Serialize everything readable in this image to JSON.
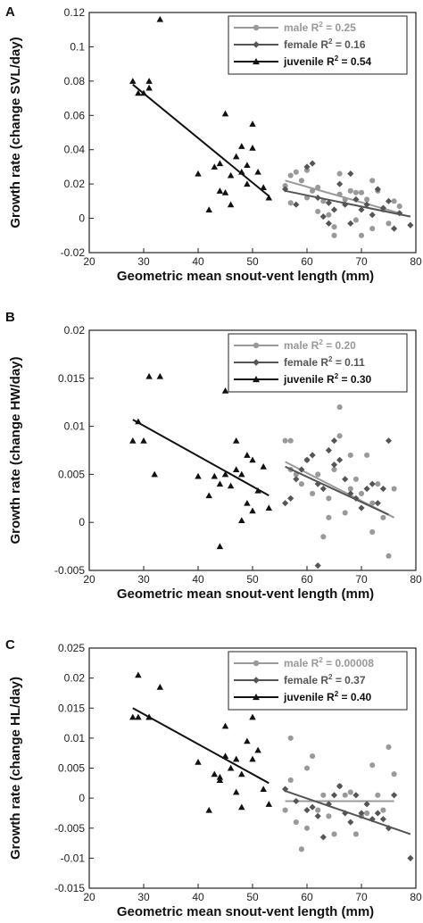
{
  "chart_data": [
    {
      "type": "scatter",
      "panel": "A",
      "xlabel": "Geometric mean snout-vent length (mm)",
      "ylabel": "Growth rate (change SVL/day)",
      "xlim": [
        20,
        80
      ],
      "ylim": [
        -0.02,
        0.12
      ],
      "xticks": [
        20,
        30,
        40,
        50,
        60,
        70,
        80
      ],
      "yticks": [
        -0.02,
        0,
        0.02,
        0.04,
        0.06,
        0.08,
        0.1,
        0.12
      ],
      "ytick_labels": [
        "-0.02",
        "0",
        "0.02",
        "0.04",
        "0.06",
        "0.08",
        "0.1",
        "0.12"
      ],
      "legend_position": "top-right",
      "series": [
        {
          "name": "male",
          "r2": "0.25",
          "color": "#999999",
          "marker": "circle",
          "points": [
            [
              56,
              0.019
            ],
            [
              57,
              0.025
            ],
            [
              57,
              0.009
            ],
            [
              58,
              0.027
            ],
            [
              59,
              0.022
            ],
            [
              60,
              0.028
            ],
            [
              60,
              0.012
            ],
            [
              61,
              0.016
            ],
            [
              62,
              0.018
            ],
            [
              62,
              0.004
            ],
            [
              63,
              0.01
            ],
            [
              64,
              0.002
            ],
            [
              65,
              -0.01
            ],
            [
              65,
              -0.005
            ],
            [
              66,
              0.026
            ],
            [
              66,
              0.014
            ],
            [
              67,
              0.011
            ],
            [
              68,
              0.016
            ],
            [
              69,
              -0.001
            ],
            [
              69,
              0.015
            ],
            [
              70,
              0.015
            ],
            [
              70,
              -0.01
            ],
            [
              71,
              0.011
            ],
            [
              72,
              0.022
            ],
            [
              72,
              -0.006
            ],
            [
              73,
              0.016
            ],
            [
              74,
              0.005
            ],
            [
              75,
              -0.003
            ],
            [
              76,
              0.01
            ],
            [
              77,
              0.007
            ]
          ],
          "fit": [
            [
              56,
              0.022
            ],
            [
              77,
              0.003
            ]
          ]
        },
        {
          "name": "female",
          "r2": "0.16",
          "color": "#555555",
          "marker": "diamond",
          "points": [
            [
              56,
              0.017
            ],
            [
              58,
              0.008
            ],
            [
              60,
              0.03
            ],
            [
              61,
              0.032
            ],
            [
              62,
              0.012
            ],
            [
              63,
              0.001
            ],
            [
              64,
              -0.003
            ],
            [
              64,
              0.009
            ],
            [
              65,
              0.005
            ],
            [
              66,
              0.02
            ],
            [
              67,
              0.008
            ],
            [
              68,
              0.026
            ],
            [
              68,
              -0.003
            ],
            [
              69,
              0.011
            ],
            [
              70,
              0.005
            ],
            [
              71,
              0.008
            ],
            [
              72,
              0.002
            ],
            [
              73,
              0.017
            ],
            [
              74,
              0.006
            ],
            [
              75,
              0.01
            ],
            [
              76,
              -0.006
            ],
            [
              77,
              0.003
            ],
            [
              79,
              -0.004
            ]
          ],
          "fit": [
            [
              56,
              0.016
            ],
            [
              79,
              0.001
            ]
          ]
        },
        {
          "name": "juvenile",
          "r2": "0.54",
          "color": "#111111",
          "marker": "triangle",
          "points": [
            [
              28,
              0.08
            ],
            [
              29,
              0.073
            ],
            [
              30,
              0.073
            ],
            [
              31,
              0.08
            ],
            [
              31,
              0.076
            ],
            [
              33,
              0.116
            ],
            [
              40,
              0.026
            ],
            [
              42,
              0.005
            ],
            [
              43,
              0.03
            ],
            [
              44,
              0.032
            ],
            [
              44,
              0.016
            ],
            [
              45,
              0.061
            ],
            [
              45,
              0.015
            ],
            [
              46,
              0.008
            ],
            [
              46,
              0.025
            ],
            [
              47,
              0.036
            ],
            [
              48,
              0.027
            ],
            [
              48,
              0.042
            ],
            [
              49,
              0.02
            ],
            [
              49,
              0.031
            ],
            [
              50,
              0.041
            ],
            [
              50,
              0.055
            ],
            [
              51,
              0.027
            ],
            [
              52,
              0.018
            ],
            [
              53,
              0.012
            ]
          ],
          "fit": [
            [
              28,
              0.078
            ],
            [
              53,
              0.013
            ]
          ]
        }
      ]
    },
    {
      "type": "scatter",
      "panel": "B",
      "xlabel": "Geometric mean snout-vent length (mm)",
      "ylabel": "Growth rate (change HW/day)",
      "xlim": [
        20,
        80
      ],
      "ylim": [
        -0.005,
        0.02
      ],
      "xticks": [
        20,
        30,
        40,
        50,
        60,
        70,
        80
      ],
      "yticks": [
        -0.005,
        0,
        0.005,
        0.01,
        0.015,
        0.02
      ],
      "ytick_labels": [
        "-0.005",
        "0",
        "0.005",
        "0.01",
        "0.015",
        "0.02"
      ],
      "legend_position": "top-right",
      "series": [
        {
          "name": "male",
          "r2": "0.20",
          "color": "#999999",
          "marker": "circle",
          "points": [
            [
              56,
              0.0085
            ],
            [
              57,
              0.0085
            ],
            [
              57,
              0.0055
            ],
            [
              58,
              0.005
            ],
            [
              59,
              0.004
            ],
            [
              60,
              0.0065
            ],
            [
              61,
              0.003
            ],
            [
              62,
              0.005
            ],
            [
              63,
              -0.0015
            ],
            [
              64,
              0.0025
            ],
            [
              64,
              0.0005
            ],
            [
              65,
              0.0055
            ],
            [
              66,
              0.012
            ],
            [
              66,
              0.009
            ],
            [
              67,
              0.001
            ],
            [
              68,
              0.007
            ],
            [
              68,
              0.0035
            ],
            [
              69,
              0.0045
            ],
            [
              70,
              0.003
            ],
            [
              71,
              0.007
            ],
            [
              72,
              0.002
            ],
            [
              72,
              -0.001
            ],
            [
              73,
              0.004
            ],
            [
              74,
              0.0005
            ],
            [
              75,
              -0.0035
            ],
            [
              76,
              0.0035
            ]
          ],
          "fit": [
            [
              56,
              0.0063
            ],
            [
              76,
              0.0005
            ]
          ]
        },
        {
          "name": "female",
          "r2": "0.11",
          "color": "#555555",
          "marker": "diamond",
          "points": [
            [
              56,
              0.002
            ],
            [
              57,
              0.0025
            ],
            [
              58,
              0.0045
            ],
            [
              59,
              0.0055
            ],
            [
              60,
              0.0065
            ],
            [
              61,
              0.007
            ],
            [
              62,
              -0.0045
            ],
            [
              62,
              0.004
            ],
            [
              63,
              0.0035
            ],
            [
              64,
              0.0075
            ],
            [
              65,
              0.0085
            ],
            [
              65,
              0.006
            ],
            [
              66,
              0.0065
            ],
            [
              67,
              0.0045
            ],
            [
              68,
              0.003
            ],
            [
              69,
              0.0025
            ],
            [
              70,
              0.0015
            ],
            [
              71,
              0.0035
            ],
            [
              72,
              0.004
            ],
            [
              73,
              0.002
            ],
            [
              74,
              0.0035
            ],
            [
              75,
              0.0085
            ]
          ],
          "fit": [
            [
              56,
              0.0058
            ],
            [
              75,
              0.0008
            ]
          ]
        },
        {
          "name": "juvenile",
          "r2": "0.30",
          "color": "#111111",
          "marker": "triangle",
          "points": [
            [
              28,
              0.0085
            ],
            [
              29,
              0.0105
            ],
            [
              30,
              0.0085
            ],
            [
              31,
              0.0152
            ],
            [
              32,
              0.005
            ],
            [
              33,
              0.0152
            ],
            [
              40,
              0.0048
            ],
            [
              42,
              0.0028
            ],
            [
              43,
              0.0048
            ],
            [
              44,
              -0.0025
            ],
            [
              44,
              0.004
            ],
            [
              45,
              0.0137
            ],
            [
              45,
              0.005
            ],
            [
              46,
              0.0038
            ],
            [
              47,
              0.0085
            ],
            [
              47,
              0.0055
            ],
            [
              48,
              0.005
            ],
            [
              48,
              0.0002
            ],
            [
              49,
              0.007
            ],
            [
              49,
              0.002
            ],
            [
              50,
              0.0065
            ],
            [
              50,
              0.0012
            ],
            [
              51,
              0.0033
            ],
            [
              52,
              0.0058
            ],
            [
              53,
              0.0015
            ]
          ],
          "fit": [
            [
              28,
              0.0107
            ],
            [
              53,
              0.0028
            ]
          ]
        }
      ]
    },
    {
      "type": "scatter",
      "panel": "C",
      "xlabel": "Geometric mean snout-vent length (mm)",
      "ylabel": "Growth rate (change HL/day)",
      "xlim": [
        20,
        80
      ],
      "ylim": [
        -0.015,
        0.025
      ],
      "xticks": [
        20,
        30,
        40,
        50,
        60,
        70,
        80
      ],
      "yticks": [
        -0.015,
        -0.01,
        -0.005,
        0,
        0.005,
        0.01,
        0.015,
        0.02,
        0.025
      ],
      "ytick_labels": [
        "-0.015",
        "-0.01",
        "-0.005",
        "0",
        "0.005",
        "0.01",
        "0.015",
        "0.02",
        "0.025"
      ],
      "legend_position": "top-right",
      "series": [
        {
          "name": "male",
          "r2": "0.00008",
          "color": "#999999",
          "marker": "circle",
          "points": [
            [
              56,
              -0.002
            ],
            [
              57,
              0.01
            ],
            [
              57,
              0.003
            ],
            [
              58,
              -0.004
            ],
            [
              59,
              -0.0085
            ],
            [
              60,
              0.005
            ],
            [
              60,
              -0.005
            ],
            [
              61,
              0.007
            ],
            [
              62,
              -0.002
            ],
            [
              63,
              0.0005
            ],
            [
              64,
              -0.003
            ],
            [
              65,
              -0.006
            ],
            [
              66,
              0.002
            ],
            [
              67,
              0.0005
            ],
            [
              68,
              0.001
            ],
            [
              69,
              -0.006
            ],
            [
              70,
              -0.003
            ],
            [
              71,
              -0.0025
            ],
            [
              72,
              0.0055
            ],
            [
              73,
              0.0005
            ],
            [
              74,
              -0.002
            ],
            [
              75,
              0.0085
            ],
            [
              76,
              0.004
            ]
          ],
          "fit": [
            [
              56,
              -0.0005
            ],
            [
              76,
              -0.0005
            ]
          ]
        },
        {
          "name": "female",
          "r2": "0.37",
          "color": "#555555",
          "marker": "diamond",
          "points": [
            [
              56,
              0.0015
            ],
            [
              58,
              -0.0005
            ],
            [
              60,
              -0.002
            ],
            [
              61,
              -0.0015
            ],
            [
              62,
              -0.003
            ],
            [
              63,
              -0.0065
            ],
            [
              64,
              -0.001
            ],
            [
              65,
              0.0005
            ],
            [
              66,
              0.002
            ],
            [
              67,
              -0.0025
            ],
            [
              68,
              -0.004
            ],
            [
              69,
              0.0005
            ],
            [
              70,
              -0.0025
            ],
            [
              71,
              -0.001
            ],
            [
              72,
              -0.0035
            ],
            [
              73,
              -0.0025
            ],
            [
              74,
              -0.0035
            ],
            [
              75,
              -0.005
            ],
            [
              76,
              0.0005
            ],
            [
              79,
              -0.01
            ]
          ],
          "fit": [
            [
              56,
              0.0012
            ],
            [
              79,
              -0.006
            ]
          ]
        },
        {
          "name": "juvenile",
          "r2": "0.40",
          "color": "#111111",
          "marker": "triangle",
          "points": [
            [
              28,
              0.0135
            ],
            [
              29,
              0.0205
            ],
            [
              29,
              0.0135
            ],
            [
              31,
              0.0135
            ],
            [
              31,
              0.0135
            ],
            [
              33,
              0.0185
            ],
            [
              40,
              0.006
            ],
            [
              42,
              -0.002
            ],
            [
              43,
              0.004
            ],
            [
              44,
              0.003
            ],
            [
              44,
              0.0035
            ],
            [
              45,
              0.012
            ],
            [
              45,
              0.007
            ],
            [
              46,
              0.005
            ],
            [
              47,
              0.0065
            ],
            [
              47,
              0.001
            ],
            [
              48,
              0.004
            ],
            [
              48,
              -0.0015
            ],
            [
              49,
              0.0095
            ],
            [
              50,
              0.0065
            ],
            [
              50,
              0.0135
            ],
            [
              51,
              0.008
            ],
            [
              52,
              0.0015
            ],
            [
              53,
              -0.001
            ]
          ],
          "fit": [
            [
              28,
              0.015
            ],
            [
              53,
              0.0025
            ]
          ]
        }
      ]
    }
  ]
}
